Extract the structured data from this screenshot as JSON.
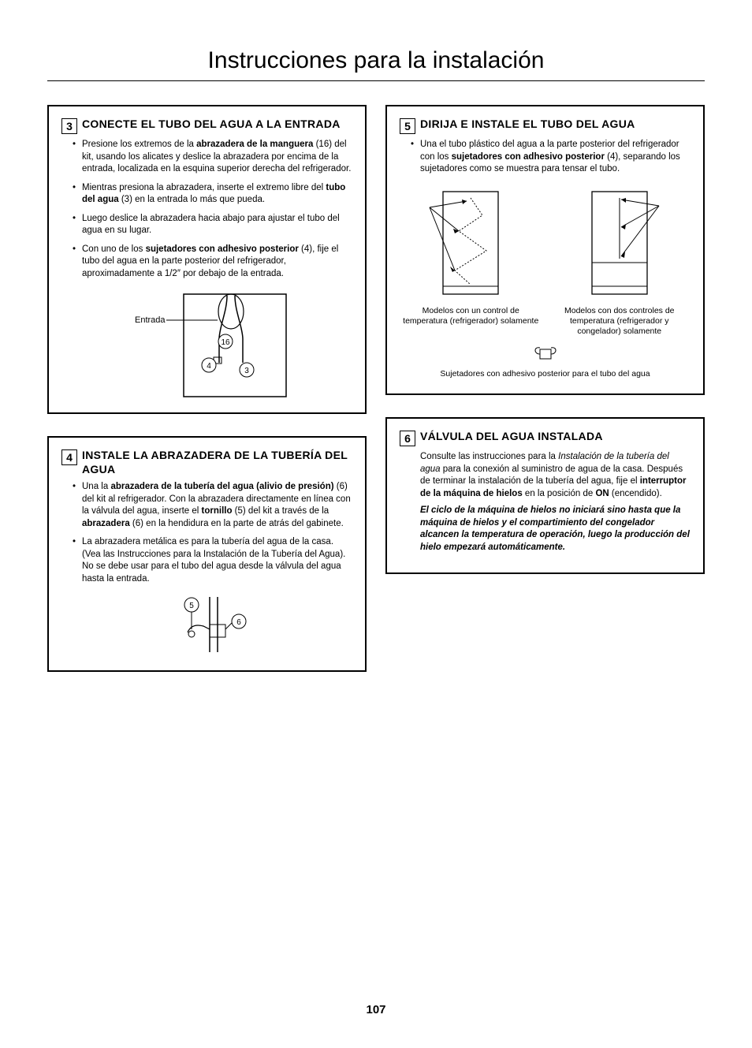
{
  "page": {
    "title": "Instrucciones para la instalación",
    "number": "107"
  },
  "steps": {
    "s3": {
      "num": "3",
      "title": "CONECTE EL TUBO DEL AGUA A LA ENTRADA",
      "bullets": [
        "Presione los extremos de la <b>abrazadera de la manguera</b> (16) del kit, usando los alicates y deslice la abrazadera por encima de la entrada, localizada en la esquina superior derecha del refrigerador.",
        "Mientras presiona la abrazadera, inserte el extremo libre del <b>tubo del agua</b> (3) en la entrada lo más que pueda.",
        "Luego deslice la abrazadera hacia abajo para ajustar el tubo del agua en su lugar.",
        "Con uno de los <b>sujetadores con adhesivo posterior</b> (4), fije el tubo del agua en la parte posterior del refrigerador, aproximadamente a 1/2″ por debajo de la entrada."
      ],
      "diagram": {
        "inlet_label": "Entrada",
        "callout_16": "16",
        "callout_4": "4",
        "callout_3": "3"
      }
    },
    "s4": {
      "num": "4",
      "title": "INSTALE LA ABRAZADERA DE LA TUBERÍA DEL AGUA",
      "bullets": [
        "Una la <b>abrazadera de la tubería del agua (alivio de presión)</b> (6) del kit al refrigerador. Con la abrazadera directamente en línea con la válvula del agua, inserte el <b>tornillo</b> (5) del kit a través de la <b>abrazadera</b> (6) en la hendidura en la parte de atrás del gabinete.",
        "La abrazadera metálica es para la tubería del agua de la casa. (Vea las Instrucciones para la Instalación de la Tubería del Agua). No se debe usar para el tubo del agua desde la válvula del agua hasta la entrada."
      ],
      "diagram": {
        "callout_5": "5",
        "callout_6": "6"
      }
    },
    "s5": {
      "num": "5",
      "title": "DIRIJA E INSTALE EL TUBO DEL AGUA",
      "bullets": [
        "Una el tubo plástico del agua a la parte posterior del refrigerador con los <b>sujetadores con adhesivo posterior</b> (4), separando los sujetadores como se muestra para tensar el tubo."
      ],
      "fig_left_caption": "Modelos con un control de temperatura (refrigerador) solamente",
      "fig_right_caption": "Modelos con dos controles de temperatura (refrigerador y congelador) solamente",
      "fastener_caption": "Sujetadores con adhesivo posterior para el tubo del agua"
    },
    "s6": {
      "num": "6",
      "title": "VÁLVULA DEL AGUA INSTALADA",
      "body": "Consulte las instrucciones para la <i>Instalación de la tubería del agua</i> para la conexión al suministro de agua de la casa. Después de terminar la instalación de la tubería del agua, fije el <b>interruptor de la máquina de hielos</b> en la posición de <b>ON</b> (encendido).",
      "note": "El ciclo de la máquina de hielos no iniciará sino hasta que la máquina de hielos y el compartimiento del congelador alcancen la temperatura de operación, luego la producción del hielo empezará automáticamente."
    }
  }
}
